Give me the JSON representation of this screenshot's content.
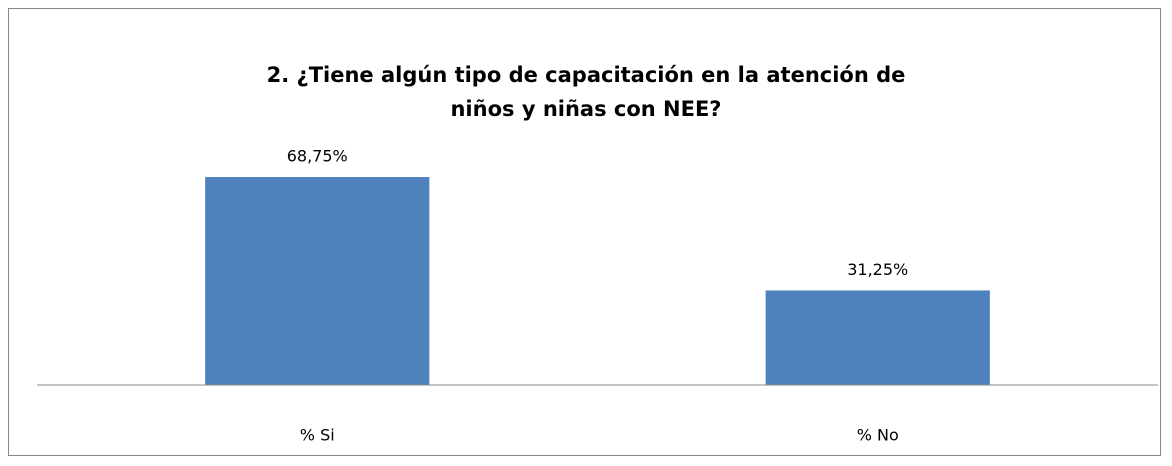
{
  "chart_data": {
    "type": "bar",
    "title": "2. ¿Tiene algún tipo de capacitación en la atención de niños y niñas con NEE?",
    "categories": [
      "% Si",
      "% No"
    ],
    "values": [
      68.75,
      31.25
    ],
    "value_labels": [
      "68,75%",
      "31,25%"
    ],
    "color": "#4f81bd",
    "ylim": [
      0,
      80
    ]
  }
}
